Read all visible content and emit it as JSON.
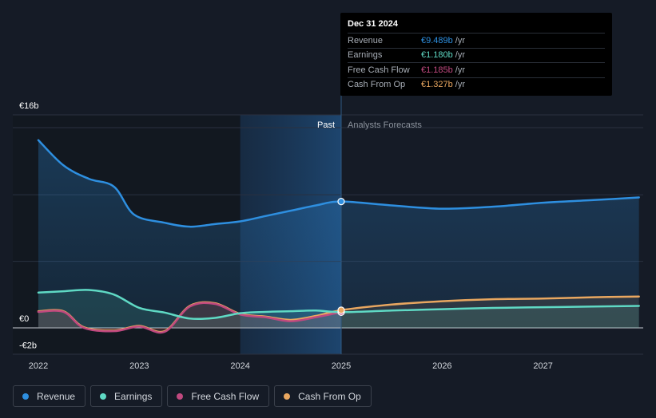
{
  "chart_data": {
    "type": "line",
    "x_ticks": [
      "2022",
      "2023",
      "2024",
      "2025",
      "2026",
      "2027"
    ],
    "y_ticks": [
      {
        "label": "€16b",
        "value": 16
      },
      {
        "label": "€0",
        "value": 0
      },
      {
        "label": "-€2b",
        "value": -2
      }
    ],
    "ylim": [
      -2,
      16
    ],
    "xlim": [
      2021.8,
      2027.95
    ],
    "past_label": "Past",
    "forecast_label": "Analysts Forecasts",
    "divider_x": 2025.0,
    "highlight_start_x": 2024.0,
    "series": [
      {
        "name": "Revenue",
        "color": "#2e8fe0",
        "points": [
          [
            2022.0,
            14.1
          ],
          [
            2022.25,
            12.2
          ],
          [
            2022.5,
            11.2
          ],
          [
            2022.75,
            10.6
          ],
          [
            2022.95,
            8.5
          ],
          [
            2023.25,
            7.9
          ],
          [
            2023.5,
            7.6
          ],
          [
            2023.75,
            7.8
          ],
          [
            2024.0,
            8.0
          ],
          [
            2024.25,
            8.4
          ],
          [
            2024.5,
            8.8
          ],
          [
            2024.75,
            9.2
          ],
          [
            2025.0,
            9.489
          ],
          [
            2025.5,
            9.2
          ],
          [
            2026.0,
            8.95
          ],
          [
            2026.5,
            9.1
          ],
          [
            2027.0,
            9.4
          ],
          [
            2027.5,
            9.6
          ],
          [
            2027.95,
            9.8
          ]
        ]
      },
      {
        "name": "Earnings",
        "color": "#5fd9c4",
        "points": [
          [
            2022.0,
            2.65
          ],
          [
            2022.25,
            2.75
          ],
          [
            2022.5,
            2.85
          ],
          [
            2022.75,
            2.5
          ],
          [
            2023.0,
            1.5
          ],
          [
            2023.25,
            1.15
          ],
          [
            2023.5,
            0.7
          ],
          [
            2023.75,
            0.75
          ],
          [
            2024.0,
            1.1
          ],
          [
            2024.25,
            1.2
          ],
          [
            2024.5,
            1.25
          ],
          [
            2024.75,
            1.3
          ],
          [
            2025.0,
            1.18
          ],
          [
            2025.5,
            1.3
          ],
          [
            2026.0,
            1.4
          ],
          [
            2026.5,
            1.5
          ],
          [
            2027.0,
            1.55
          ],
          [
            2027.5,
            1.6
          ],
          [
            2027.95,
            1.65
          ]
        ]
      },
      {
        "name": "Free Cash Flow",
        "color": "#c0497f",
        "points": [
          [
            2022.0,
            1.2
          ],
          [
            2022.25,
            1.2
          ],
          [
            2022.45,
            0.0
          ],
          [
            2022.75,
            -0.25
          ],
          [
            2023.0,
            0.1
          ],
          [
            2023.25,
            -0.3
          ],
          [
            2023.5,
            1.6
          ],
          [
            2023.75,
            1.8
          ],
          [
            2024.0,
            1.0
          ],
          [
            2024.25,
            0.8
          ],
          [
            2024.5,
            0.5
          ],
          [
            2024.75,
            0.8
          ],
          [
            2025.0,
            1.185
          ]
        ]
      },
      {
        "name": "Cash From Op",
        "color": "#e9a760",
        "points": [
          [
            2022.0,
            1.25
          ],
          [
            2022.25,
            1.25
          ],
          [
            2022.45,
            0.05
          ],
          [
            2022.75,
            -0.2
          ],
          [
            2023.0,
            0.15
          ],
          [
            2023.25,
            -0.25
          ],
          [
            2023.5,
            1.65
          ],
          [
            2023.75,
            1.85
          ],
          [
            2024.0,
            1.05
          ],
          [
            2024.25,
            0.85
          ],
          [
            2024.5,
            0.6
          ],
          [
            2024.75,
            0.9
          ],
          [
            2025.0,
            1.327
          ],
          [
            2025.5,
            1.75
          ],
          [
            2026.0,
            2.0
          ],
          [
            2026.5,
            2.15
          ],
          [
            2027.0,
            2.2
          ],
          [
            2027.5,
            2.3
          ],
          [
            2027.95,
            2.35
          ]
        ]
      }
    ]
  },
  "tooltip": {
    "date": "Dec 31 2024",
    "rows": [
      {
        "label": "Revenue",
        "value": "€9.489b",
        "unit": "/yr",
        "color": "#2e8fe0"
      },
      {
        "label": "Earnings",
        "value": "€1.180b",
        "unit": "/yr",
        "color": "#5fd9c4"
      },
      {
        "label": "Free Cash Flow",
        "value": "€1.185b",
        "unit": "/yr",
        "color": "#c0497f"
      },
      {
        "label": "Cash From Op",
        "value": "€1.327b",
        "unit": "/yr",
        "color": "#e9a760"
      }
    ]
  },
  "legend": [
    {
      "label": "Revenue",
      "color": "#2e8fe0"
    },
    {
      "label": "Earnings",
      "color": "#5fd9c4"
    },
    {
      "label": "Free Cash Flow",
      "color": "#c0497f"
    },
    {
      "label": "Cash From Op",
      "color": "#e9a760"
    }
  ]
}
